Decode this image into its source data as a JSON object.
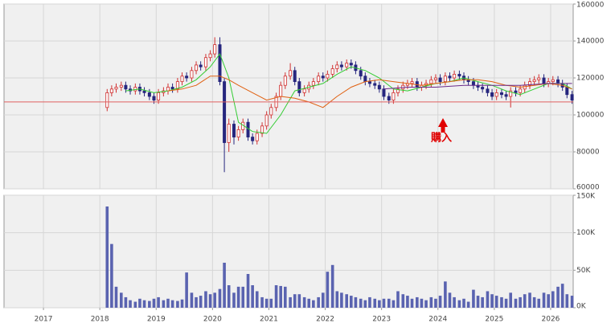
{
  "chart_data": [
    {
      "type": "candlestick",
      "x": [
        2018.13,
        2018.21,
        2018.29,
        2018.38,
        2018.46,
        2018.54,
        2018.63,
        2018.71,
        2018.79,
        2018.88,
        2018.96,
        2019.04,
        2019.13,
        2019.21,
        2019.29,
        2019.38,
        2019.46,
        2019.54,
        2019.63,
        2019.71,
        2019.79,
        2019.88,
        2019.96,
        2020.04,
        2020.13,
        2020.21,
        2020.29,
        2020.38,
        2020.46,
        2020.54,
        2020.63,
        2020.71,
        2020.79,
        2020.88,
        2020.96,
        2021.04,
        2021.13,
        2021.21,
        2021.29,
        2021.38,
        2021.46,
        2021.54,
        2021.63,
        2021.71,
        2021.79,
        2021.88,
        2021.96,
        2022.04,
        2022.13,
        2022.21,
        2022.29,
        2022.38,
        2022.46,
        2022.54,
        2022.63,
        2022.71,
        2022.79,
        2022.88,
        2022.96,
        2023.04,
        2023.13,
        2023.21,
        2023.29,
        2023.38,
        2023.46,
        2023.54,
        2023.63,
        2023.71,
        2023.79,
        2023.88,
        2023.96,
        2024.04,
        2024.13,
        2024.21,
        2024.29,
        2024.38,
        2024.46,
        2024.54,
        2024.63,
        2024.71,
        2024.79,
        2024.88,
        2024.96,
        2025.04,
        2025.13,
        2025.21,
        2025.29,
        2025.38,
        2025.46,
        2025.54,
        2025.63,
        2025.71,
        2025.79,
        2025.88,
        2025.96,
        2026.04,
        2026.13,
        2026.21,
        2026.29,
        2026.38
      ],
      "open": [
        104000,
        112000,
        114000,
        115000,
        116000,
        114000,
        113000,
        115000,
        113000,
        112000,
        110000,
        108000,
        112000,
        113000,
        115000,
        114000,
        118000,
        121000,
        120000,
        124000,
        127000,
        126000,
        131000,
        133000,
        138000,
        118000,
        85000,
        95000,
        88000,
        92000,
        96000,
        88000,
        86000,
        90000,
        94000,
        100000,
        104000,
        110000,
        116000,
        121000,
        124000,
        118000,
        112000,
        114000,
        116000,
        118000,
        121000,
        120000,
        122000,
        125000,
        127000,
        126000,
        128000,
        127000,
        124000,
        121000,
        118000,
        117000,
        116000,
        114000,
        110000,
        108000,
        112000,
        114000,
        116000,
        117000,
        118000,
        115000,
        116000,
        117000,
        119000,
        120000,
        118000,
        121000,
        120000,
        122000,
        121000,
        119000,
        118000,
        116000,
        115000,
        114000,
        112000,
        110000,
        112000,
        111000,
        110000,
        113000,
        112000,
        114000,
        116000,
        118000,
        119000,
        120000,
        117000,
        118000,
        119000,
        117000,
        115000,
        111000
      ],
      "high": [
        114000,
        116000,
        117000,
        118000,
        118000,
        116000,
        117000,
        117000,
        115000,
        114000,
        112000,
        114000,
        115000,
        117000,
        117000,
        120000,
        123000,
        123000,
        126000,
        129000,
        129000,
        133000,
        135000,
        142000,
        142000,
        120000,
        98000,
        97000,
        94000,
        98000,
        98000,
        90000,
        92000,
        96000,
        102000,
        106000,
        112000,
        118000,
        123000,
        128000,
        126000,
        120000,
        116000,
        118000,
        120000,
        123000,
        123000,
        124000,
        127000,
        129000,
        129000,
        130000,
        130000,
        129000,
        126000,
        123000,
        120000,
        119000,
        118000,
        116000,
        112000,
        114000,
        116000,
        118000,
        119000,
        120000,
        120000,
        118000,
        119000,
        121000,
        122000,
        122000,
        123000,
        123000,
        124000,
        124000,
        123000,
        121000,
        120000,
        118000,
        117000,
        116000,
        114000,
        114000,
        114000,
        113000,
        115000,
        115000,
        116000,
        118000,
        120000,
        121000,
        122000,
        122000,
        120000,
        121000,
        121000,
        119000,
        117000,
        113000
      ],
      "low": [
        102000,
        110000,
        112000,
        113000,
        112000,
        111000,
        111000,
        111000,
        110000,
        108000,
        106000,
        106000,
        110000,
        111000,
        112000,
        112000,
        116000,
        118000,
        118000,
        122000,
        124000,
        124000,
        129000,
        131000,
        116000,
        69000,
        80000,
        84000,
        86000,
        90000,
        86000,
        84000,
        84000,
        88000,
        92000,
        98000,
        102000,
        108000,
        114000,
        119000,
        116000,
        110000,
        110000,
        112000,
        114000,
        116000,
        118000,
        118000,
        120000,
        123000,
        124000,
        124000,
        125000,
        122000,
        119000,
        116000,
        115000,
        114000,
        112000,
        108000,
        106000,
        106000,
        110000,
        112000,
        114000,
        115000,
        113000,
        113000,
        114000,
        115000,
        117000,
        116000,
        116000,
        118000,
        118000,
        119000,
        117000,
        116000,
        114000,
        113000,
        112000,
        110000,
        108000,
        108000,
        109000,
        108000,
        104000,
        110000,
        110000,
        112000,
        114000,
        116000,
        117000,
        115000,
        115000,
        116000,
        115000,
        113000,
        109000,
        106000
      ],
      "close": [
        112000,
        114000,
        115000,
        116000,
        114000,
        113000,
        115000,
        113000,
        112000,
        110000,
        108000,
        112000,
        113000,
        115000,
        114000,
        118000,
        121000,
        120000,
        124000,
        127000,
        126000,
        131000,
        133000,
        138000,
        118000,
        85000,
        95000,
        88000,
        92000,
        96000,
        88000,
        86000,
        90000,
        94000,
        100000,
        104000,
        110000,
        116000,
        121000,
        124000,
        118000,
        112000,
        114000,
        116000,
        118000,
        121000,
        120000,
        122000,
        125000,
        127000,
        126000,
        128000,
        127000,
        124000,
        121000,
        118000,
        117000,
        116000,
        114000,
        110000,
        108000,
        112000,
        114000,
        116000,
        117000,
        118000,
        115000,
        116000,
        117000,
        119000,
        120000,
        118000,
        121000,
        120000,
        122000,
        121000,
        119000,
        118000,
        116000,
        115000,
        114000,
        112000,
        110000,
        112000,
        111000,
        110000,
        113000,
        112000,
        114000,
        116000,
        118000,
        119000,
        120000,
        117000,
        118000,
        119000,
        117000,
        115000,
        111000,
        108000
      ],
      "up_color": "#d03030",
      "down_color": "#26267e",
      "series": [
        {
          "color": "#33cc33",
          "x": [
            2018.46,
            2018.71,
            2018.96,
            2019.21,
            2019.46,
            2019.71,
            2019.96,
            2020.13,
            2020.29,
            2020.46,
            2020.71,
            2020.96,
            2021.21,
            2021.46,
            2021.71,
            2021.96,
            2022.21,
            2022.46,
            2022.71,
            2022.96,
            2023.21,
            2023.46,
            2023.71,
            2023.96,
            2024.21,
            2024.46,
            2024.71,
            2024.96,
            2025.21,
            2025.46,
            2025.71,
            2025.96,
            2026.21,
            2026.38
          ],
          "values": [
            113000,
            114000,
            112000,
            113000,
            115000,
            119000,
            126000,
            133000,
            120000,
            96000,
            91000,
            90000,
            100000,
            113000,
            115000,
            117000,
            122000,
            126000,
            124000,
            120000,
            114000,
            113000,
            115000,
            117000,
            118000,
            120000,
            118000,
            116000,
            113000,
            111000,
            114000,
            117000,
            117000,
            114000
          ]
        },
        {
          "color": "#e06010",
          "x": [
            2019.21,
            2019.46,
            2019.71,
            2019.96,
            2020.13,
            2020.29,
            2020.46,
            2020.71,
            2020.96,
            2021.21,
            2021.46,
            2021.71,
            2021.96,
            2022.21,
            2022.46,
            2022.71,
            2022.96,
            2023.21,
            2023.46,
            2023.71,
            2023.96,
            2024.21,
            2024.46,
            2024.71,
            2024.96,
            2025.21,
            2025.46,
            2025.71,
            2025.96,
            2026.21,
            2026.38
          ],
          "values": [
            113000,
            114000,
            116000,
            121000,
            121000,
            119000,
            116000,
            112000,
            108000,
            110000,
            109000,
            107000,
            104000,
            110000,
            115000,
            118000,
            119000,
            118000,
            117000,
            116000,
            117000,
            118000,
            119000,
            119000,
            118000,
            116000,
            115000,
            116000,
            117000,
            116000,
            114000
          ]
        },
        {
          "color": "#6a2a8a",
          "x": [
            2023.04,
            2023.46,
            2023.96,
            2024.46,
            2024.96,
            2025.46,
            2025.96,
            2026.38
          ],
          "values": [
            114000,
            115000,
            115000,
            116000,
            116000,
            116000,
            117000,
            117000
          ]
        }
      ],
      "hline": 107000,
      "hline_color": "#e06060",
      "annotation": "購入",
      "annotation_color": "#e00000",
      "xlim": [
        2016.3,
        2026.4
      ],
      "ylim": [
        60000,
        160000
      ],
      "yticks": [
        60000,
        80000,
        100000,
        120000,
        140000,
        160000
      ],
      "grid": true
    },
    {
      "type": "bar",
      "values": [
        135000,
        85000,
        28000,
        20000,
        14000,
        10000,
        8000,
        12000,
        10000,
        9000,
        12000,
        14000,
        10000,
        12000,
        10000,
        9000,
        11000,
        47000,
        20000,
        14000,
        16000,
        22000,
        18000,
        20000,
        25000,
        60000,
        30000,
        20000,
        28000,
        28000,
        45000,
        30000,
        22000,
        14000,
        12000,
        12000,
        30000,
        29000,
        28000,
        14000,
        18000,
        18000,
        14000,
        12000,
        10000,
        14000,
        20000,
        48000,
        57000,
        22000,
        20000,
        18000,
        16000,
        14000,
        12000,
        10000,
        14000,
        12000,
        10000,
        12000,
        12000,
        10000,
        22000,
        18000,
        16000,
        12000,
        14000,
        12000,
        10000,
        14000,
        12000,
        16000,
        35000,
        20000,
        14000,
        10000,
        12000,
        8000,
        24000,
        16000,
        14000,
        22000,
        18000,
        16000,
        14000,
        12000,
        20000,
        12000,
        14000,
        18000,
        20000,
        14000,
        12000,
        20000,
        18000,
        22000,
        28000,
        32000,
        18000,
        16000
      ],
      "color": "#5a63b0",
      "xlim": [
        2016.3,
        2026.4
      ],
      "xticks": [
        2017,
        2018,
        2019,
        2020,
        2021,
        2022,
        2023,
        2024,
        2025,
        2026
      ],
      "ylim": [
        0,
        150000
      ],
      "yticks": [
        {
          "value": 0,
          "label": "0K"
        },
        {
          "value": 50000,
          "label": "50K"
        },
        {
          "value": 100000,
          "label": "100K"
        },
        {
          "value": 150000,
          "label": "150K"
        }
      ],
      "grid": true
    }
  ]
}
